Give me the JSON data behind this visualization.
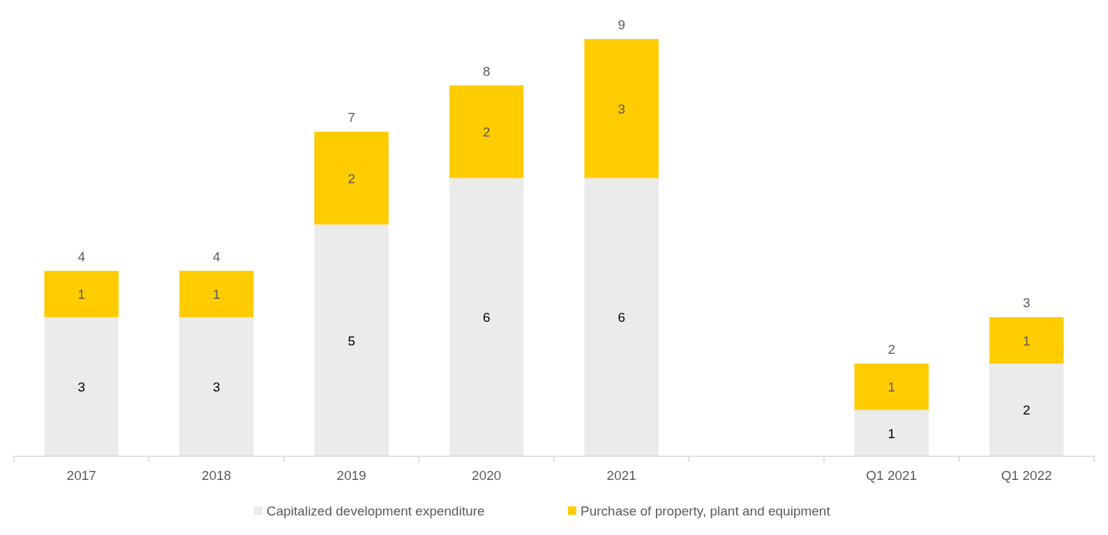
{
  "chart_data": {
    "type": "bar",
    "stacked": true,
    "data_labels": true,
    "legend": "bottom",
    "categories": [
      "2017",
      "2018",
      "2019",
      "2020",
      "2021",
      null,
      "Q1 2021",
      "Q1 2022"
    ],
    "series": [
      {
        "name": "Capitalized development expenditure",
        "color": "#ebebeb",
        "values": [
          3,
          3,
          5,
          6,
          6,
          null,
          1,
          2
        ]
      },
      {
        "name": "Purchase of property, plant and equipment",
        "color": "#ffcc00",
        "values": [
          1,
          1,
          2,
          2,
          3,
          null,
          1,
          1
        ]
      }
    ],
    "totals": [
      "4",
      "4",
      "7",
      "8",
      "9",
      null,
      "2",
      "3"
    ]
  }
}
